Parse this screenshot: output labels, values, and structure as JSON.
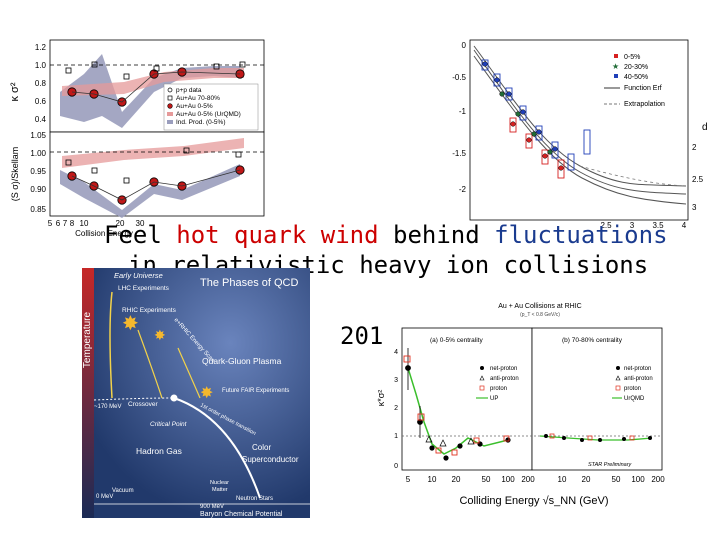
{
  "slide": {
    "title_part1": "Feel ",
    "title_hot": "hot quark wind",
    "title_part2": " behind ",
    "title_fluct": "fluctuations",
    "title_line2": "in relativistic heavy ion collisions",
    "year_fragment": "201",
    "colors": {
      "hot": "#cc0000",
      "fluctuations": "#1a3b8f"
    }
  },
  "fig_kappa": {
    "top_ylabel": "κ σ²",
    "bottom_ylabel": "(S σ)/Skellam",
    "xlabel": "Collision Energy",
    "top_yticks": [
      "1.2",
      "1.0",
      "0.8",
      "0.6",
      "0.4"
    ],
    "bottom_yticks": [
      "1.05",
      "1.00",
      "0.95",
      "0.90",
      "0.85"
    ],
    "xticks": [
      "5",
      "6",
      "7",
      "8",
      "10",
      "20",
      "30"
    ],
    "legend": [
      "p+p data",
      "Au+Au 70-80%",
      "Au+Au 0-5%",
      "Au+Au 0-5% (UrQMD)",
      "Ind. Prod. (0-5%)"
    ]
  },
  "fig_nsig": {
    "yticks": [
      "0",
      "-0.5",
      "-1",
      "-1.5",
      "-2"
    ],
    "right_yticks": [
      "2",
      "2.5",
      "3"
    ],
    "xticks": [
      "2.5",
      "3",
      "3.5",
      "4"
    ],
    "right_label": "d",
    "legend": [
      "0-5%",
      "20-30%",
      "40-50%",
      "Function Erf",
      "Extrapolation"
    ],
    "series": [
      {
        "name": "0-5%",
        "color": "#d62020"
      },
      {
        "name": "20-30%",
        "color": "#1f6b35"
      },
      {
        "name": "40-50%",
        "color": "#1f3fb8"
      }
    ]
  },
  "fig_qcd": {
    "title": "The Phases of QCD",
    "early_universe": "Early Universe",
    "lhc": "LHC Experiments",
    "rhic": "RHIC Experiments",
    "rhic_scan": "e+RHIC Energy Scan",
    "qgp": "Quark-Gluon Plasma",
    "future": "Future FAIR Experiments",
    "crossover": "Crossover",
    "critical_point": "Critical Point",
    "transition": "1st order phase transition",
    "hadron_gas": "Hadron Gas",
    "color_sc1": "Color",
    "color_sc2": "Superconductor",
    "nuclear1": "Nuclear",
    "nuclear2": "Matter",
    "vacuum": "Vacuum",
    "neutron_stars": "Neutron Stars",
    "temp_label": "Temperature",
    "t170": "~170 MeV",
    "t0": "0 MeV",
    "mu900": "900 MeV",
    "mu_label": "Baryon Chemical Potential"
  },
  "fig_star": {
    "title": "Au + Au Collisions at RHIC",
    "subtitle": "(p_T < 0.8 GeV/c)",
    "panel_a": "(a) 0-5% centrality",
    "panel_b": "(b) 70-80% centrality",
    "ylabel": "κ*σ²",
    "xlabel": "Colliding Energy √s_NN (GeV)",
    "preliminary": "STAR Preliminary",
    "yticks": [
      "4",
      "3",
      "2",
      "1",
      "0"
    ],
    "xticks_a": [
      "5",
      "10",
      "20",
      "50",
      "100",
      "200"
    ],
    "xticks_b": [
      "10",
      "20",
      "50",
      "100",
      "200"
    ],
    "legend": [
      "net-proton",
      "anti-proton",
      "proton",
      "UrQMD"
    ],
    "legend_short": "UP"
  }
}
